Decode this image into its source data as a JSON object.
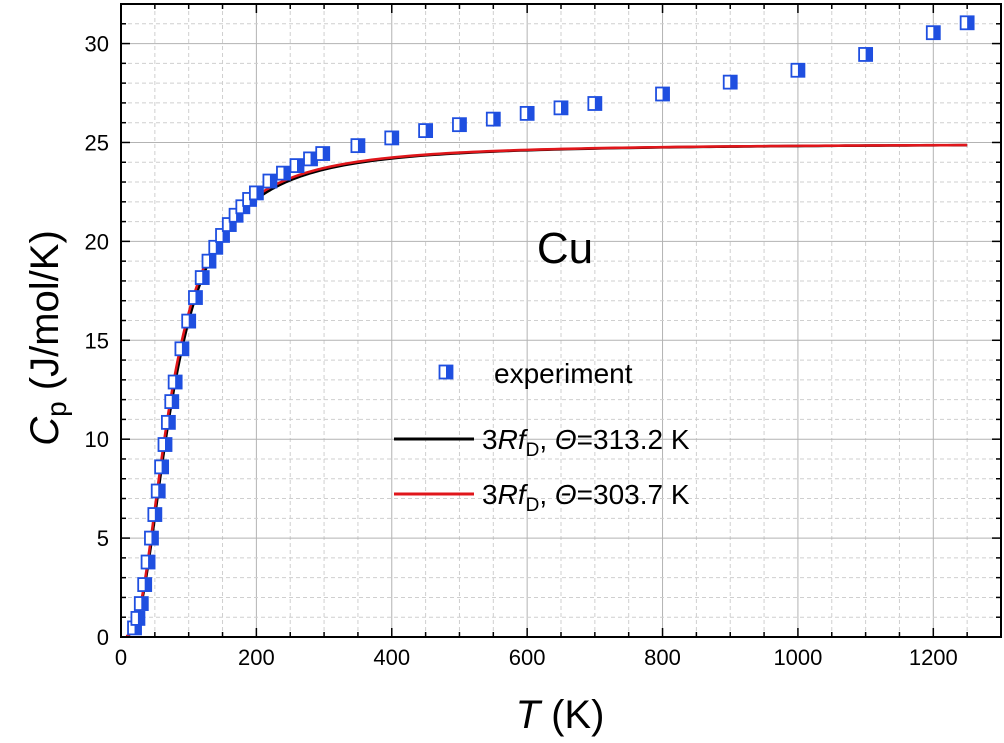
{
  "chart_data": {
    "type": "scatter",
    "annotation": "Cu",
    "xaxis": {
      "title_var": "T",
      "title_unit": " (K)",
      "range": [
        0,
        1300
      ],
      "ticks": [
        0,
        200,
        400,
        600,
        800,
        1000,
        1200
      ],
      "minor_step": 50
    },
    "yaxis": {
      "title_var": "C",
      "title_sub": "p",
      "title_unit": " (J/mol/K)",
      "range": [
        0,
        32
      ],
      "ticks": [
        0,
        5,
        10,
        15,
        20,
        25,
        30
      ],
      "minor_step": 1
    },
    "grid": true,
    "legend": {
      "placement": "center-right",
      "entries": [
        {
          "kind": "marker",
          "label": "experiment"
        },
        {
          "kind": "line",
          "color": "#000000",
          "prefix": "3",
          "R": "R",
          "f": "f",
          "sub": "D",
          "mid": ", ",
          "theta": "Θ",
          "suffix": "=313.2 K"
        },
        {
          "kind": "line",
          "color": "#e0161b",
          "prefix": "3",
          "R": "R",
          "f": "f",
          "sub": "D",
          "mid": ", ",
          "theta": "Θ",
          "suffix": "=303.7 K"
        }
      ]
    },
    "series": [
      {
        "name": "experiment",
        "kind": "marker",
        "color": "#1f4fe0",
        "x": [
          20,
          25,
          30,
          35,
          40,
          45,
          50,
          55,
          60,
          65,
          70,
          75,
          80,
          90,
          100,
          110,
          120,
          130,
          140,
          150,
          160,
          170,
          180,
          190,
          200,
          220,
          240,
          260,
          280,
          298,
          350,
          400,
          450,
          500,
          550,
          600,
          650,
          700,
          800,
          900,
          1000,
          1100,
          1200,
          1250
        ],
        "y": [
          0.46,
          0.94,
          1.69,
          2.65,
          3.79,
          5.0,
          6.19,
          7.38,
          8.6,
          9.73,
          10.85,
          11.9,
          12.89,
          14.57,
          15.97,
          17.16,
          18.17,
          19.0,
          19.7,
          20.3,
          20.85,
          21.32,
          21.75,
          22.12,
          22.45,
          23.05,
          23.45,
          23.83,
          24.17,
          24.44,
          24.84,
          25.23,
          25.6,
          25.9,
          26.18,
          26.47,
          26.75,
          26.97,
          27.45,
          28.05,
          28.65,
          29.45,
          30.55,
          31.05
        ]
      },
      {
        "name": "3RfD, Θ=313.2 K",
        "kind": "debye",
        "theta": 313.2,
        "color": "#000000"
      },
      {
        "name": "3RfD, Θ=303.7 K",
        "kind": "debye",
        "theta": 303.7,
        "color": "#e0161b"
      }
    ],
    "model_range": [
      8,
      1250
    ]
  }
}
